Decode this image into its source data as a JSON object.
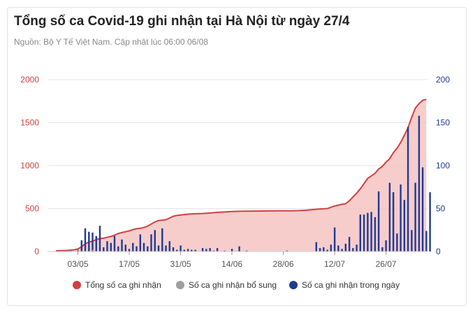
{
  "header": {
    "title": "Tổng số ca Covid-19 ghi nhận tại Hà Nội từ ngày 27/4",
    "subtitle": "Nguồn: Bộ Y Tế Việt Nam. Cập nhật lúc 06:00 06/08"
  },
  "colors": {
    "cumulative": "#d0403f",
    "cumulative_fill": "#f4c4c2",
    "supplement": "#9e9e9e",
    "daily": "#1f3a93",
    "left_axis": "#d0403f",
    "right_axis": "#1f3a93",
    "grid": "#e4e4e4"
  },
  "chart_data": {
    "type": "area+bar",
    "x_tick_labels": [
      "03/05",
      "17/05",
      "31/05",
      "14/06",
      "28/06",
      "12/07",
      "26/07"
    ],
    "x_tick_day_index": [
      6,
      20,
      34,
      48,
      62,
      76,
      90
    ],
    "x_range_day_index": [
      0,
      101
    ],
    "y_left": {
      "range": [
        0,
        2000
      ],
      "ticks": [
        "0",
        "500",
        "1000",
        "1500",
        "2000"
      ]
    },
    "y_right": {
      "range": [
        0,
        200
      ],
      "ticks": [
        "0",
        "50",
        "100",
        "150",
        "200"
      ]
    },
    "grid": true,
    "legend_position": "bottom",
    "legend": [
      "Tổng số ca ghi nhận",
      "Số ca ghi nhận bổ sung",
      "Số ca ghi nhận trong ngày"
    ],
    "series": [
      {
        "name": "Tổng số ca ghi nhận",
        "kind": "area",
        "axis": "left",
        "points": [
          [
            0,
            8
          ],
          [
            3,
            12
          ],
          [
            5,
            20
          ],
          [
            6,
            30
          ],
          [
            7,
            55
          ],
          [
            8,
            90
          ],
          [
            9,
            110
          ],
          [
            10,
            120
          ],
          [
            11,
            140
          ],
          [
            12,
            150
          ],
          [
            13,
            155
          ],
          [
            14,
            165
          ],
          [
            15,
            175
          ],
          [
            16,
            190
          ],
          [
            17,
            210
          ],
          [
            18,
            220
          ],
          [
            19,
            230
          ],
          [
            20,
            240
          ],
          [
            21,
            255
          ],
          [
            22,
            265
          ],
          [
            23,
            270
          ],
          [
            24,
            280
          ],
          [
            25,
            295
          ],
          [
            26,
            320
          ],
          [
            27,
            345
          ],
          [
            28,
            360
          ],
          [
            29,
            365
          ],
          [
            30,
            370
          ],
          [
            31,
            390
          ],
          [
            32,
            410
          ],
          [
            33,
            420
          ],
          [
            34,
            425
          ],
          [
            35,
            430
          ],
          [
            36,
            435
          ],
          [
            38,
            440
          ],
          [
            40,
            442
          ],
          [
            42,
            448
          ],
          [
            44,
            455
          ],
          [
            46,
            460
          ],
          [
            48,
            465
          ],
          [
            50,
            468
          ],
          [
            52,
            470
          ],
          [
            55,
            471
          ],
          [
            58,
            472
          ],
          [
            60,
            473
          ],
          [
            62,
            474
          ],
          [
            64,
            474
          ],
          [
            66,
            476
          ],
          [
            68,
            480
          ],
          [
            70,
            488
          ],
          [
            72,
            495
          ],
          [
            74,
            500
          ],
          [
            75,
            515
          ],
          [
            76,
            530
          ],
          [
            77,
            540
          ],
          [
            78,
            550
          ],
          [
            79,
            555
          ],
          [
            80,
            590
          ],
          [
            81,
            635
          ],
          [
            82,
            680
          ],
          [
            83,
            730
          ],
          [
            84,
            790
          ],
          [
            85,
            850
          ],
          [
            86,
            880
          ],
          [
            87,
            910
          ],
          [
            88,
            960
          ],
          [
            89,
            990
          ],
          [
            90,
            1040
          ],
          [
            91,
            1080
          ],
          [
            92,
            1150
          ],
          [
            93,
            1200
          ],
          [
            94,
            1270
          ],
          [
            95,
            1350
          ],
          [
            96,
            1440
          ],
          [
            97,
            1560
          ],
          [
            98,
            1670
          ],
          [
            99,
            1720
          ],
          [
            100,
            1760
          ],
          [
            101,
            1770
          ]
        ]
      },
      {
        "name": "Số ca ghi nhận bổ sung",
        "kind": "bar",
        "axis": "right",
        "points": [
          [
            4,
            1
          ],
          [
            6,
            1
          ],
          [
            10,
            1
          ]
        ]
      },
      {
        "name": "Số ca ghi nhận trong ngày",
        "kind": "bar",
        "axis": "right",
        "points": [
          [
            1,
            1
          ],
          [
            4,
            2
          ],
          [
            6,
            2
          ],
          [
            7,
            13
          ],
          [
            8,
            27
          ],
          [
            9,
            23
          ],
          [
            10,
            22
          ],
          [
            11,
            18
          ],
          [
            12,
            30
          ],
          [
            13,
            5
          ],
          [
            14,
            12
          ],
          [
            15,
            10
          ],
          [
            16,
            18
          ],
          [
            17,
            6
          ],
          [
            18,
            14
          ],
          [
            19,
            8
          ],
          [
            20,
            3
          ],
          [
            21,
            10
          ],
          [
            22,
            6
          ],
          [
            23,
            20
          ],
          [
            24,
            10
          ],
          [
            25,
            6
          ],
          [
            26,
            20
          ],
          [
            27,
            25
          ],
          [
            28,
            7
          ],
          [
            29,
            27
          ],
          [
            30,
            7
          ],
          [
            31,
            12
          ],
          [
            32,
            5
          ],
          [
            33,
            2
          ],
          [
            34,
            7
          ],
          [
            35,
            2
          ],
          [
            36,
            3
          ],
          [
            37,
            2
          ],
          [
            38,
            2
          ],
          [
            40,
            4
          ],
          [
            41,
            3
          ],
          [
            42,
            4
          ],
          [
            43,
            1
          ],
          [
            44,
            4
          ],
          [
            46,
            1
          ],
          [
            48,
            3
          ],
          [
            50,
            6
          ],
          [
            52,
            1
          ],
          [
            63,
            1
          ],
          [
            71,
            11
          ],
          [
            72,
            4
          ],
          [
            73,
            5
          ],
          [
            74,
            2
          ],
          [
            75,
            8
          ],
          [
            76,
            28
          ],
          [
            77,
            7
          ],
          [
            78,
            3
          ],
          [
            79,
            9
          ],
          [
            80,
            17
          ],
          [
            81,
            4
          ],
          [
            82,
            8
          ],
          [
            83,
            43
          ],
          [
            84,
            43
          ],
          [
            85,
            45
          ],
          [
            86,
            46
          ],
          [
            87,
            40
          ],
          [
            88,
            70
          ],
          [
            89,
            5
          ],
          [
            90,
            13
          ],
          [
            91,
            80
          ],
          [
            92,
            69
          ],
          [
            93,
            21
          ],
          [
            94,
            78
          ],
          [
            95,
            60
          ],
          [
            96,
            145
          ],
          [
            97,
            25
          ],
          [
            98,
            80
          ],
          [
            99,
            158
          ],
          [
            100,
            98
          ],
          [
            101,
            24
          ],
          [
            102,
            69
          ]
        ]
      }
    ]
  }
}
